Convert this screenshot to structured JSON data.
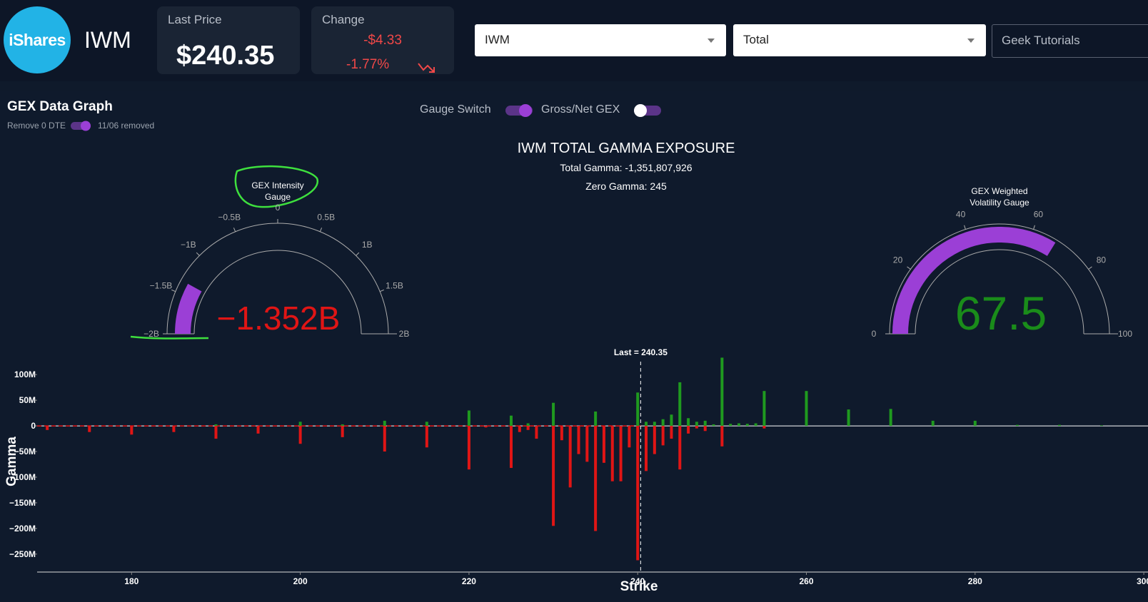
{
  "header": {
    "logo": "iShares",
    "ticker": "IWM",
    "last_price_label": "Last Price",
    "last_price": "$240.35",
    "change_label": "Change",
    "change_amount": "-$4.33",
    "change_percent": "-1.77%",
    "ticker_select": "IWM",
    "type_select": "Total",
    "tutorials": "Geek Tutorials"
  },
  "panel": {
    "title": "GEX Data Graph",
    "remove_0dte_label": "Remove 0 DTE",
    "removed_label": "11/06 removed",
    "gauge_switch_label": "Gauge Switch",
    "gross_net_label": "Gross/Net GEX"
  },
  "chart_data": [
    {
      "type": "bar",
      "title": "IWM TOTAL GAMMA EXPOSURE",
      "subtitle": [
        "Total Gamma: -1,351,807,926",
        "Zero Gamma: 245"
      ],
      "annotation": "Last = 240.35",
      "last": 240.35,
      "x_label": "Strike",
      "y_label": "Gamma",
      "x": [
        170,
        175,
        180,
        185,
        190,
        195,
        200,
        205,
        210,
        215,
        220,
        222,
        225,
        226,
        227,
        228,
        230,
        231,
        232,
        233,
        234,
        235,
        236,
        237,
        238,
        239,
        240,
        241,
        242,
        243,
        244,
        245,
        246,
        247,
        248,
        249,
        250,
        251,
        252,
        253,
        254,
        255,
        260,
        265,
        270,
        275,
        280,
        285,
        290,
        295
      ],
      "series": [
        {
          "color": "#1f9a1f",
          "values": [
            0,
            0,
            0,
            0,
            3000000,
            0,
            8000000,
            3000000,
            10000000,
            8000000,
            30000000,
            0,
            20000000,
            0,
            5000000,
            0,
            45000000,
            0,
            0,
            0,
            0,
            28000000,
            0,
            0,
            0,
            0,
            65000000,
            8000000,
            8000000,
            13000000,
            22000000,
            85000000,
            15000000,
            8000000,
            10000000,
            3000000,
            133000000,
            4000000,
            5000000,
            4000000,
            5000000,
            68000000,
            68000000,
            32000000,
            33000000,
            10000000,
            10000000,
            2000000,
            2000000,
            1000000
          ]
        },
        {
          "color": "#e01515",
          "values": [
            -8000000,
            -12000000,
            -17000000,
            -12000000,
            -25000000,
            -15000000,
            -35000000,
            -22000000,
            -50000000,
            -42000000,
            -85000000,
            -3000000,
            -82000000,
            -12000000,
            -8000000,
            -25000000,
            -195000000,
            -28000000,
            -120000000,
            -55000000,
            -70000000,
            -205000000,
            -72000000,
            -108000000,
            -108000000,
            -42000000,
            -262000000,
            -88000000,
            -55000000,
            -38000000,
            -25000000,
            -85000000,
            -15000000,
            -5000000,
            -10000000,
            0,
            -40000000,
            0,
            0,
            0,
            0,
            -5000000,
            0,
            0,
            0,
            0,
            0,
            0,
            0,
            0
          ]
        }
      ],
      "xlim": [
        168.8,
        300.5
      ],
      "xticks": [
        180,
        200,
        220,
        240,
        260,
        280,
        300
      ],
      "ylim": [
        -285000000,
        135000000
      ],
      "yticks": [
        {
          "value": 100000000,
          "label": "100M"
        },
        {
          "value": 50000000,
          "label": "50M"
        },
        0,
        {
          "value": -50000000,
          "label": "−50M"
        },
        {
          "value": -100000000,
          "label": "−100M"
        },
        {
          "value": -150000000,
          "label": "−150M"
        },
        {
          "value": -200000000,
          "label": "−200M"
        },
        {
          "value": -250000000,
          "label": "−250M"
        }
      ]
    },
    {
      "type": "gauge",
      "title": [
        "GEX Intensity",
        "Gauge"
      ],
      "value": -1.352,
      "value_label": "−1.352B",
      "color": "#9b3fd6",
      "value_color": "#e01515",
      "lim": [
        -2,
        2
      ],
      "ticks": [
        {
          "value": -2,
          "label": "−2B"
        },
        {
          "value": -1.5,
          "label": "−1.5B"
        },
        {
          "value": -1,
          "label": "−1B"
        },
        {
          "value": -0.5,
          "label": "−0.5B"
        },
        0,
        {
          "value": 0.5,
          "label": "0.5B"
        },
        {
          "value": 1,
          "label": "1B"
        },
        {
          "value": 1.5,
          "label": "1.5B"
        },
        {
          "value": 2,
          "label": "2B"
        }
      ]
    },
    {
      "type": "gauge",
      "title": [
        "GEX Weighted",
        "Volatility Gauge"
      ],
      "value": 67.5,
      "color": "#9b3fd6",
      "value_color": "#1a8c1a",
      "lim": [
        0,
        100
      ],
      "ticks": [
        0,
        20,
        40,
        60,
        80,
        100
      ]
    }
  ]
}
